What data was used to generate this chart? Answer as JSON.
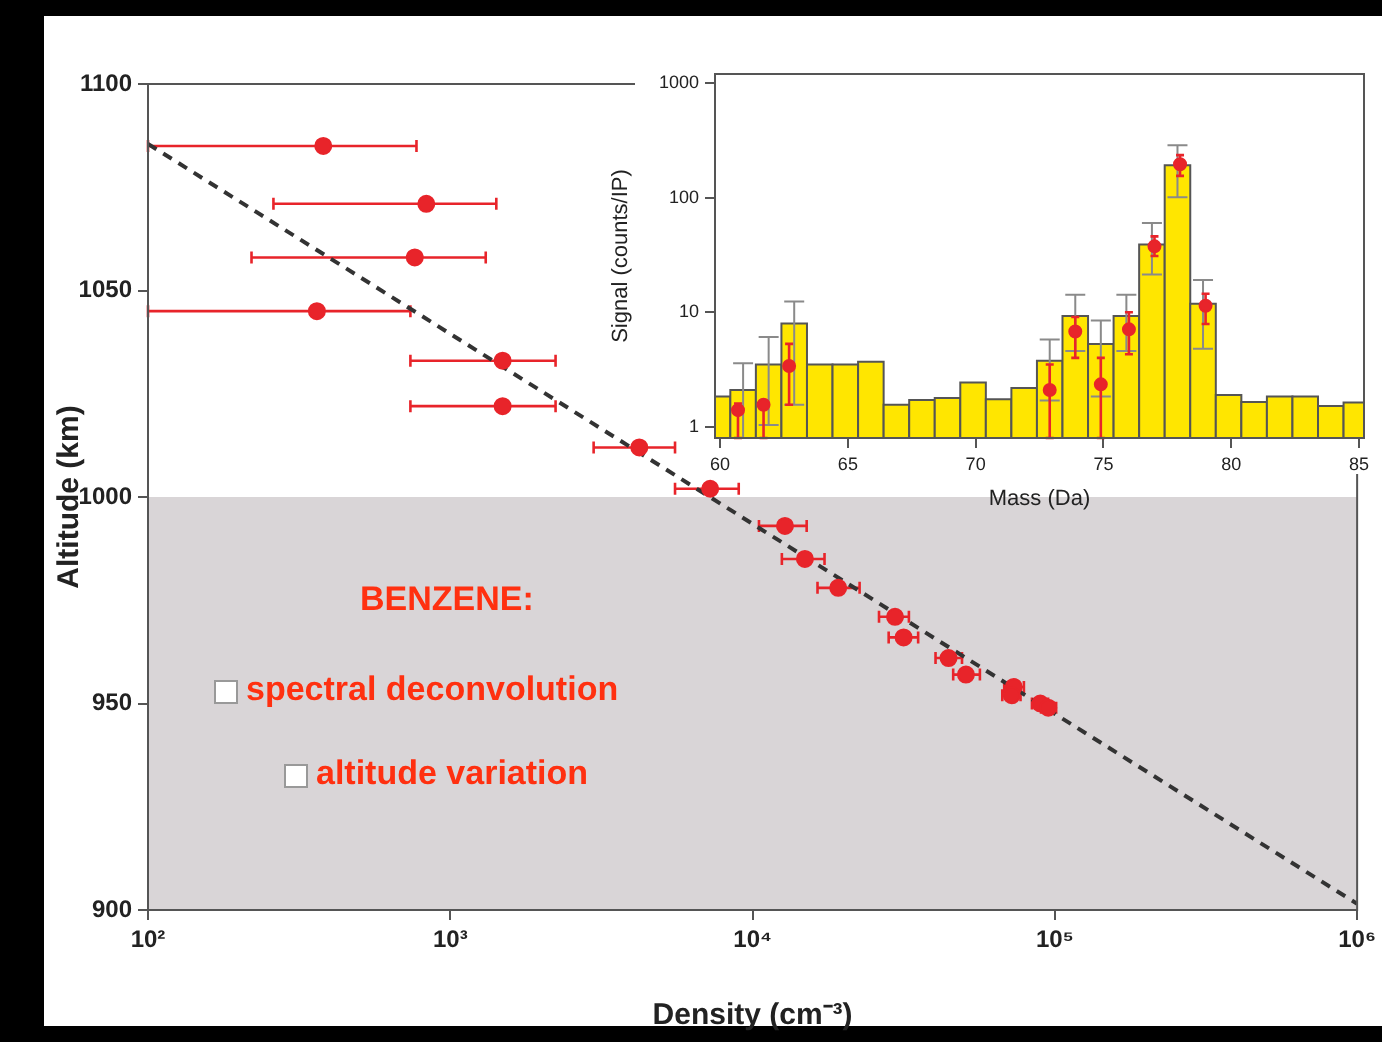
{
  "chart_data": [
    {
      "type": "scatter",
      "xlabel": "Density (cm⁻³)",
      "ylabel": "Altitude (km)",
      "log": "x",
      "xlim": [
        100,
        1000000
      ],
      "xticks": [
        {
          "value": 100,
          "label": "10²"
        },
        {
          "value": 1000,
          "label": "10³"
        },
        {
          "value": 10000,
          "label": "10⁴"
        },
        {
          "value": 100000,
          "label": "10⁵"
        },
        {
          "value": 1000000,
          "label": "10⁶"
        }
      ],
      "ylim": [
        900,
        1100
      ],
      "yticks": [
        900,
        950,
        1000,
        1050,
        1100
      ],
      "grid": false,
      "legend": false,
      "bands": [
        {
          "axis": "y",
          "from": 900,
          "to": 1000,
          "color": "#d9d5d7"
        }
      ],
      "annotations": [
        "BENZENE:",
        "spectral deconvolution",
        "altitude variation"
      ],
      "series": [
        {
          "color": "#e8242a",
          "marker": "circle",
          "x": [
            380,
            833,
            763,
            362,
            1490,
            1490,
            4220,
            7240,
            12800,
            14900,
            19200,
            29600,
            31600,
            44500,
            50800,
            73100,
            72000,
            89500,
            95100
          ],
          "values": [
            1085,
            1071,
            1058,
            1045,
            1033,
            1022,
            1012,
            1002,
            993,
            985,
            978,
            971,
            966,
            961,
            957,
            954,
            952,
            950,
            949
          ],
          "xerrors": [
            [
              100,
              773
            ],
            [
              260,
              1420
            ],
            [
              220,
              1310
            ],
            [
              100,
              738
            ],
            [
              738,
              2230
            ],
            [
              738,
              2230
            ],
            [
              2980,
              5540
            ],
            [
              5540,
              9000
            ],
            [
              10500,
              15100
            ],
            [
              12500,
              17300
            ],
            [
              16400,
              22600
            ],
            [
              26200,
              32900
            ],
            [
              28200,
              35300
            ],
            [
              40300,
              49300
            ],
            [
              46100,
              56500
            ],
            [
              68000,
              79000
            ],
            [
              67000,
              77000
            ],
            [
              84000,
              95000
            ],
            [
              90000,
              101000
            ]
          ]
        },
        {
          "type": "line",
          "color": "#333333",
          "line_style": "dashed",
          "marker": "none",
          "x": [
            100,
            1000000
          ],
          "values": [
            1085.5,
            901.5
          ]
        }
      ]
    },
    {
      "type": "histogram",
      "xlabel": "Mass (Da)",
      "ylabel": "Signal (counts/IP)",
      "log": "y",
      "xlim": [
        59.8,
        85.2
      ],
      "xticks": [
        60,
        65,
        70,
        75,
        80,
        85
      ],
      "ylim": [
        0.8,
        1200
      ],
      "yticks": [
        1,
        10,
        100,
        1000
      ],
      "grid": false,
      "legend": false,
      "series": [
        {
          "color": "#ffe600",
          "bins": [
            59.8,
            60.4,
            61.4,
            62.4,
            63.4,
            64.4,
            65.4,
            66.4,
            67.4,
            68.4,
            69.4,
            70.4,
            71.4,
            72.4,
            73.4,
            74.4,
            75.4,
            76.4,
            77.4,
            78.4,
            79.4,
            80.4,
            81.4,
            82.4,
            83.4,
            84.4,
            85.2
          ],
          "values": [
            1.84,
            2.1,
            3.5,
            8.0,
            3.5,
            3.5,
            3.7,
            1.56,
            1.72,
            1.79,
            2.44,
            1.74,
            2.19,
            3.77,
            9.3,
            5.3,
            9.3,
            39,
            192,
            11.9,
            1.9,
            1.65,
            1.84,
            1.84,
            1.52,
            1.63
          ],
          "errors": [
            null,
            [
              0.8,
              3.6
            ],
            [
              1.04,
              6.1
            ],
            [
              1.56,
              12.4
            ],
            null,
            null,
            null,
            null,
            null,
            null,
            null,
            null,
            null,
            [
              1.7,
              5.8
            ],
            [
              4.6,
              14.2
            ],
            [
              1.84,
              8.5
            ],
            [
              4.6,
              14.2
            ],
            [
              21.4,
              60
            ],
            [
              101,
              287
            ],
            [
              4.8,
              19.1
            ],
            null,
            null,
            null,
            null,
            null,
            null
          ]
        },
        {
          "type": "scatter",
          "color": "#e8242a",
          "marker": "circle",
          "x": [
            60.7,
            61.7,
            62.7,
            72.9,
            73.9,
            74.9,
            76,
            77,
            78,
            79
          ],
          "values": [
            1.4,
            1.56,
            3.4,
            2.1,
            6.8,
            2.35,
            7.1,
            37.6,
            196,
            11.4
          ],
          "errors": [
            [
              0.8,
              1.6
            ],
            [
              0.8,
              1.7
            ],
            [
              1.56,
              5.3
            ],
            [
              0.8,
              3.5
            ],
            [
              4.0,
              9.1
            ],
            [
              0.8,
              4.0
            ],
            [
              4.3,
              10
            ],
            [
              31,
              46
            ],
            [
              155,
              235
            ],
            [
              7.9,
              14.5
            ]
          ]
        }
      ]
    }
  ]
}
